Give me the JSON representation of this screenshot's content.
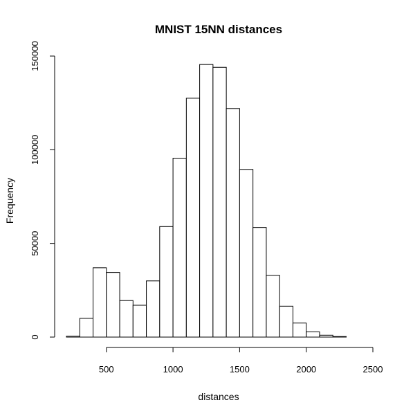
{
  "chart_data": {
    "type": "bar",
    "title": "MNIST 15NN distances",
    "xlabel": "distances",
    "ylabel": "Frequency",
    "bin_width": 100,
    "bin_start": [
      200,
      300,
      400,
      500,
      600,
      700,
      800,
      900,
      1000,
      1100,
      1200,
      1300,
      1400,
      1500,
      1600,
      1700,
      1800,
      1900,
      2000,
      2100,
      2200
    ],
    "values": [
      500,
      10000,
      37000,
      34500,
      19500,
      17000,
      30000,
      59000,
      95500,
      127500,
      145500,
      144000,
      122000,
      89500,
      58500,
      33000,
      16500,
      7500,
      2800,
      1000,
      300
    ],
    "x_ticks": [
      500,
      1000,
      1500,
      2000,
      2500
    ],
    "y_ticks": [
      0,
      50000,
      100000,
      150000
    ],
    "xlim": [
      200,
      2500
    ],
    "ylim": [
      0,
      150000
    ],
    "grid": false,
    "legend": "none"
  }
}
